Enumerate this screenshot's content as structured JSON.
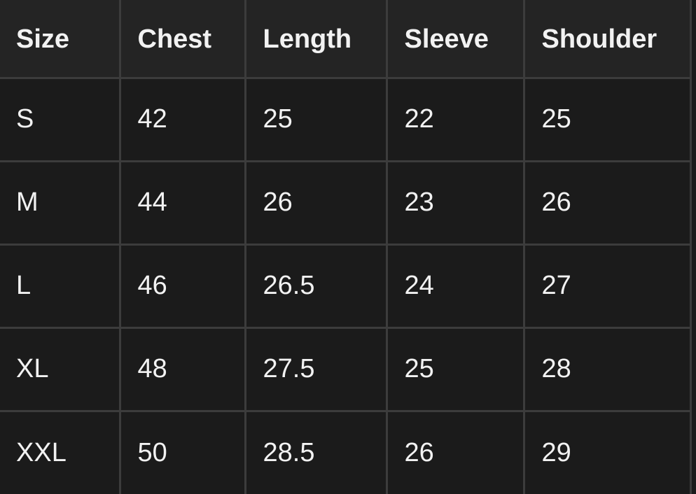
{
  "table": {
    "headers": [
      "Size",
      "Chest",
      "Length",
      "Sleeve",
      "Shoulder"
    ],
    "rows": [
      [
        "S",
        "42",
        "25",
        "22",
        "25"
      ],
      [
        "M",
        "44",
        "26",
        "23",
        "26"
      ],
      [
        "L",
        "46",
        "26.5",
        "24",
        "27"
      ],
      [
        "XL",
        "48",
        "27.5",
        "25",
        "28"
      ],
      [
        "XXL",
        "50",
        "28.5",
        "26",
        "29"
      ]
    ]
  },
  "colors": {
    "header_bg": "#242424",
    "body_bg": "#1b1b1b",
    "border": "#3c3c3c",
    "text": "#f2f2f2"
  }
}
